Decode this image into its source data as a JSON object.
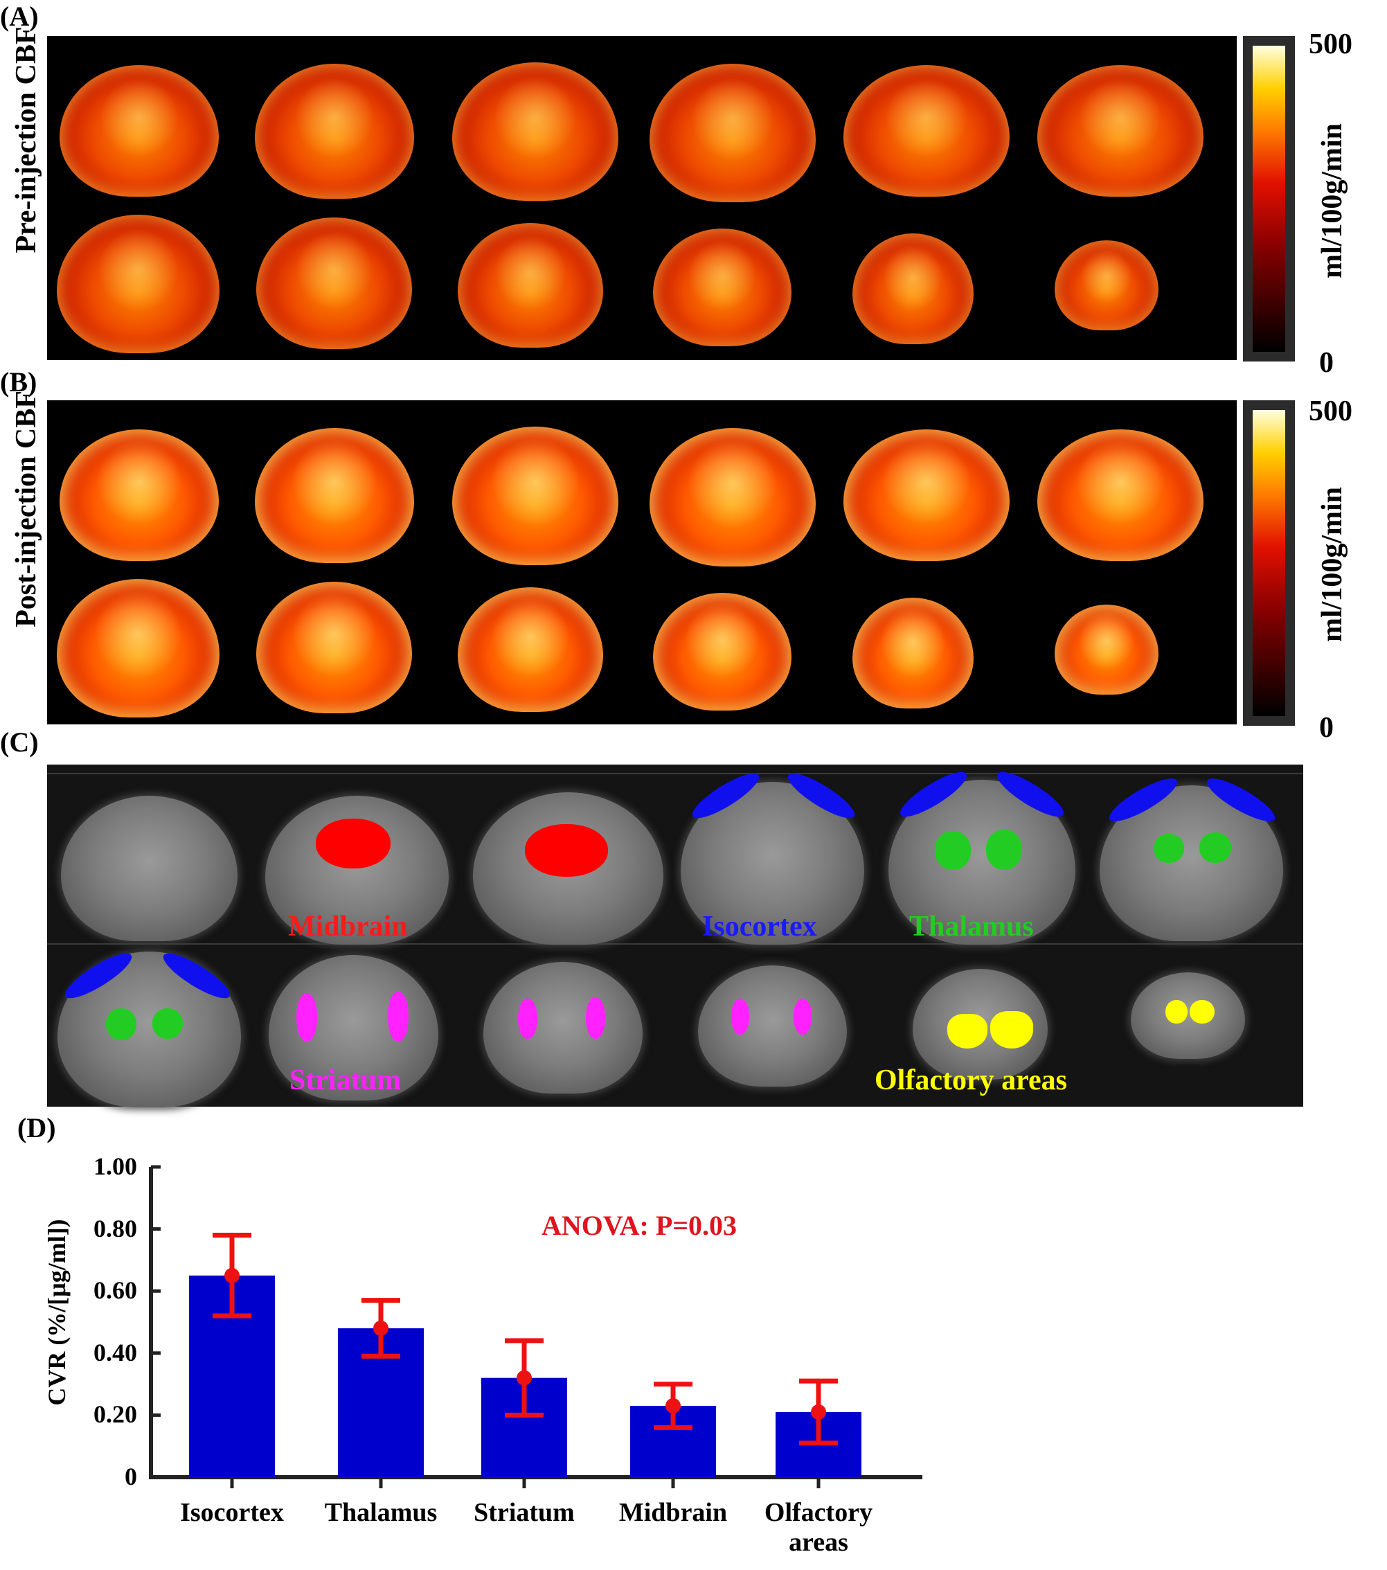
{
  "panels": {
    "a": {
      "label": "(A)",
      "ylabel": "Pre-injection CBF",
      "cbar_max": "500",
      "cbar_min": "0",
      "cbar_unit": "ml/100g/min"
    },
    "b": {
      "label": "(B)",
      "ylabel": "Post-injection CBF",
      "cbar_max": "500",
      "cbar_min": "0",
      "cbar_unit": "ml/100g/min"
    },
    "c": {
      "label": "(C)",
      "roi_labels": [
        {
          "text": "Midbrain",
          "color": "#ff1a1a"
        },
        {
          "text": "Isocortex",
          "color": "#1a1aff"
        },
        {
          "text": "Thalamus",
          "color": "#22cc22"
        },
        {
          "text": "Striatum",
          "color": "#ff22ff"
        },
        {
          "text": "Olfactory areas",
          "color": "#ffff00"
        }
      ]
    },
    "d": {
      "label": "(D)",
      "annotation": "ANOVA: P=0.03"
    }
  },
  "chart_data": {
    "type": "bar",
    "categories": [
      "Isocortex",
      "Thalamus",
      "Striatum",
      "Midbrain",
      "Olfactory\nareas"
    ],
    "values": [
      0.65,
      0.48,
      0.32,
      0.23,
      0.21
    ],
    "errors": [
      0.13,
      0.09,
      0.12,
      0.07,
      0.1
    ],
    "ylabel": "CVR (%/[μg/ml])",
    "ylim": [
      0,
      1.0
    ],
    "yticks": [
      "0",
      "0.20",
      "0.40",
      "0.60",
      "0.80",
      "1.00"
    ],
    "bar_color": "#0000cc",
    "error_color": "#ee1111",
    "title": "",
    "xlabel": ""
  }
}
